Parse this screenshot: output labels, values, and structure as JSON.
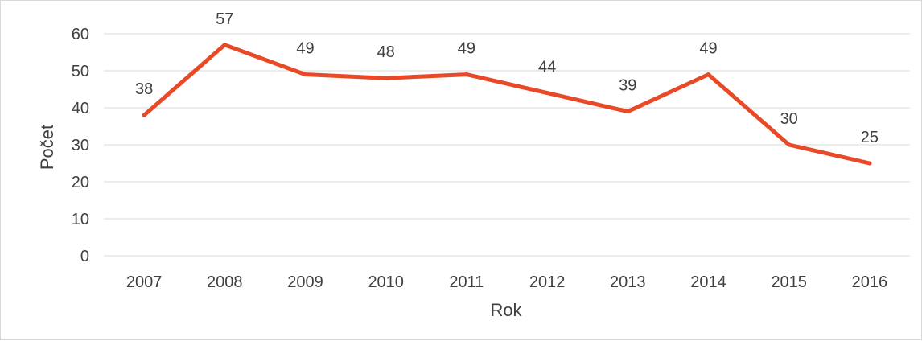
{
  "chart_data": {
    "type": "line",
    "title": "",
    "xlabel": "Rok",
    "ylabel": "Počet",
    "categories": [
      "2007",
      "2008",
      "2009",
      "2010",
      "2011",
      "2012",
      "2013",
      "2014",
      "2015",
      "2016"
    ],
    "series": [
      {
        "values": [
          38,
          57,
          49,
          48,
          49,
          44,
          39,
          49,
          30,
          25
        ],
        "color": "#e84a27"
      }
    ],
    "yticks": [
      "0",
      "10",
      "20",
      "30",
      "40",
      "50",
      "60"
    ],
    "ylim": [
      0,
      60
    ],
    "grid": true,
    "legend": "none",
    "data_labels": [
      "38",
      "57",
      "49",
      "48",
      "49",
      "44",
      "39",
      "49",
      "30",
      "25"
    ]
  }
}
